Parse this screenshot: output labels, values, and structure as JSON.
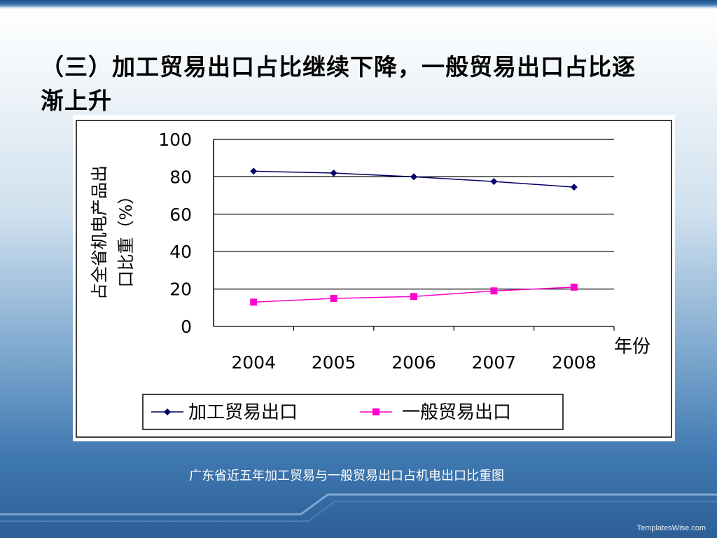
{
  "slide": {
    "title": "（三）加工贸易出口占比继续下降，一般贸易出口占比逐渐上升",
    "caption": "广东省近五年加工贸易与一般贸易出口占机电出口比重图",
    "brand": "TemplatesWise.com"
  },
  "colors": {
    "series1": "#000066",
    "series2": "#ff00cc"
  },
  "chart_data": {
    "type": "line",
    "x": [
      "2004",
      "2005",
      "2006",
      "2007",
      "2008"
    ],
    "xlabel": "年份",
    "ylabel_line1": "占全省机电产品出",
    "ylabel_line2": "口比重（%）",
    "ylim": [
      0,
      100
    ],
    "yticks": [
      0,
      20,
      40,
      60,
      80,
      100
    ],
    "grid": true,
    "legend_position": "bottom",
    "series": [
      {
        "name": "加工贸易出口",
        "values": [
          83,
          82,
          80,
          77.5,
          74.5
        ],
        "marker": "diamond"
      },
      {
        "name": "一般贸易出口",
        "values": [
          13,
          15,
          16,
          19,
          21
        ],
        "marker": "square"
      }
    ]
  }
}
